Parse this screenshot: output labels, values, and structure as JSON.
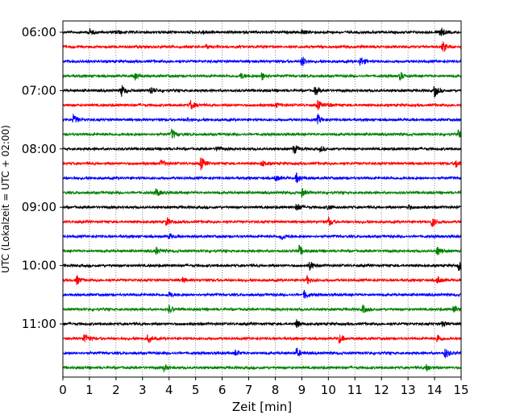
{
  "chart_data": {
    "type": "line",
    "title": "",
    "xlabel": "Zeit  [min]",
    "ylabel": "UTC (Lokalzeit = UTC + 02:00)",
    "xlim": [
      0,
      15
    ],
    "x_ticks": [
      "0",
      "1",
      "2",
      "3",
      "4",
      "5",
      "6",
      "7",
      "8",
      "9",
      "10",
      "11",
      "12",
      "13",
      "14",
      "15"
    ],
    "y_tick_labels": [
      "06:00",
      "07:00",
      "08:00",
      "09:00",
      "10:00",
      "11:00"
    ],
    "trace_interval_minutes": 15,
    "first_trace_start": "06:00",
    "trace_colors": [
      "#000000",
      "#ff0000",
      "#0000ff",
      "#008000"
    ],
    "grid_x": true,
    "traces": [
      {
        "start": "06:00",
        "color": "#000000",
        "events": [
          [
            1.0,
            0.5
          ],
          [
            2.0,
            0.3
          ],
          [
            5.3,
            0.3
          ],
          [
            9.0,
            0.4
          ],
          [
            14.2,
            0.9
          ]
        ]
      },
      {
        "start": "06:15",
        "color": "#ff0000",
        "events": [
          [
            5.4,
            0.3
          ],
          [
            14.3,
            0.9
          ]
        ]
      },
      {
        "start": "06:30",
        "color": "#0000ff",
        "events": [
          [
            9.0,
            0.9
          ],
          [
            11.2,
            0.8
          ]
        ]
      },
      {
        "start": "06:45",
        "color": "#008000",
        "events": [
          [
            2.7,
            0.7
          ],
          [
            6.7,
            0.5
          ],
          [
            7.5,
            0.6
          ],
          [
            12.7,
            0.6
          ]
        ]
      },
      {
        "start": "07:00",
        "color": "#000000",
        "events": [
          [
            2.2,
            0.9
          ],
          [
            3.3,
            0.7
          ],
          [
            9.5,
            0.7
          ],
          [
            14.0,
            1.0
          ]
        ]
      },
      {
        "start": "07:15",
        "color": "#ff0000",
        "events": [
          [
            4.8,
            0.8
          ],
          [
            8.0,
            0.4
          ],
          [
            9.6,
            0.7
          ],
          [
            10.0,
            0.3
          ]
        ]
      },
      {
        "start": "07:30",
        "color": "#0000ff",
        "events": [
          [
            0.4,
            0.7
          ],
          [
            4.7,
            0.3
          ],
          [
            9.6,
            0.7
          ]
        ]
      },
      {
        "start": "07:45",
        "color": "#008000",
        "events": [
          [
            4.1,
            0.8
          ],
          [
            14.9,
            0.7
          ]
        ]
      },
      {
        "start": "08:00",
        "color": "#000000",
        "events": [
          [
            5.8,
            0.4
          ],
          [
            8.7,
            0.8
          ],
          [
            9.7,
            0.4
          ]
        ]
      },
      {
        "start": "08:15",
        "color": "#ff0000",
        "events": [
          [
            3.7,
            0.5
          ],
          [
            5.2,
            1.0
          ],
          [
            7.5,
            0.5
          ],
          [
            14.8,
            0.7
          ]
        ]
      },
      {
        "start": "08:30",
        "color": "#0000ff",
        "events": [
          [
            8.0,
            0.5
          ],
          [
            8.8,
            0.8
          ]
        ]
      },
      {
        "start": "08:45",
        "color": "#008000",
        "events": [
          [
            3.5,
            0.7
          ],
          [
            9.0,
            0.6
          ],
          [
            15.0,
            0.6
          ]
        ]
      },
      {
        "start": "09:00",
        "color": "#000000",
        "events": [
          [
            8.8,
            0.7
          ],
          [
            10.0,
            0.4
          ],
          [
            13.0,
            0.3
          ]
        ]
      },
      {
        "start": "09:15",
        "color": "#ff0000",
        "events": [
          [
            3.9,
            0.7
          ],
          [
            10.0,
            0.7
          ],
          [
            13.9,
            0.8
          ]
        ]
      },
      {
        "start": "09:30",
        "color": "#0000ff",
        "events": [
          [
            4.0,
            0.4
          ],
          [
            8.2,
            0.7
          ]
        ]
      },
      {
        "start": "09:45",
        "color": "#008000",
        "events": [
          [
            3.5,
            0.6
          ],
          [
            8.9,
            0.8
          ],
          [
            14.1,
            0.8
          ]
        ]
      },
      {
        "start": "10:00",
        "color": "#000000",
        "events": [
          [
            9.3,
            0.7
          ],
          [
            14.9,
            0.7
          ]
        ]
      },
      {
        "start": "10:15",
        "color": "#ff0000",
        "events": [
          [
            0.5,
            0.8
          ],
          [
            4.5,
            0.4
          ],
          [
            9.2,
            0.6
          ],
          [
            14.1,
            0.6
          ]
        ]
      },
      {
        "start": "10:30",
        "color": "#0000ff",
        "events": [
          [
            4.0,
            0.4
          ],
          [
            9.1,
            0.7
          ]
        ]
      },
      {
        "start": "10:45",
        "color": "#008000",
        "events": [
          [
            4.0,
            0.6
          ],
          [
            11.3,
            0.6
          ],
          [
            14.7,
            0.7
          ]
        ]
      },
      {
        "start": "11:00",
        "color": "#000000",
        "events": [
          [
            8.8,
            0.6
          ],
          [
            14.3,
            0.5
          ]
        ]
      },
      {
        "start": "11:15",
        "color": "#ff0000",
        "events": [
          [
            0.8,
            1.0
          ],
          [
            3.2,
            0.6
          ],
          [
            10.4,
            0.7
          ],
          [
            14.1,
            0.7
          ]
        ]
      },
      {
        "start": "11:30",
        "color": "#0000ff",
        "events": [
          [
            6.5,
            0.4
          ],
          [
            8.8,
            0.7
          ],
          [
            14.4,
            0.8
          ]
        ]
      },
      {
        "start": "11:45",
        "color": "#008000",
        "events": [
          [
            3.8,
            0.5
          ],
          [
            13.7,
            0.6
          ]
        ]
      }
    ]
  }
}
